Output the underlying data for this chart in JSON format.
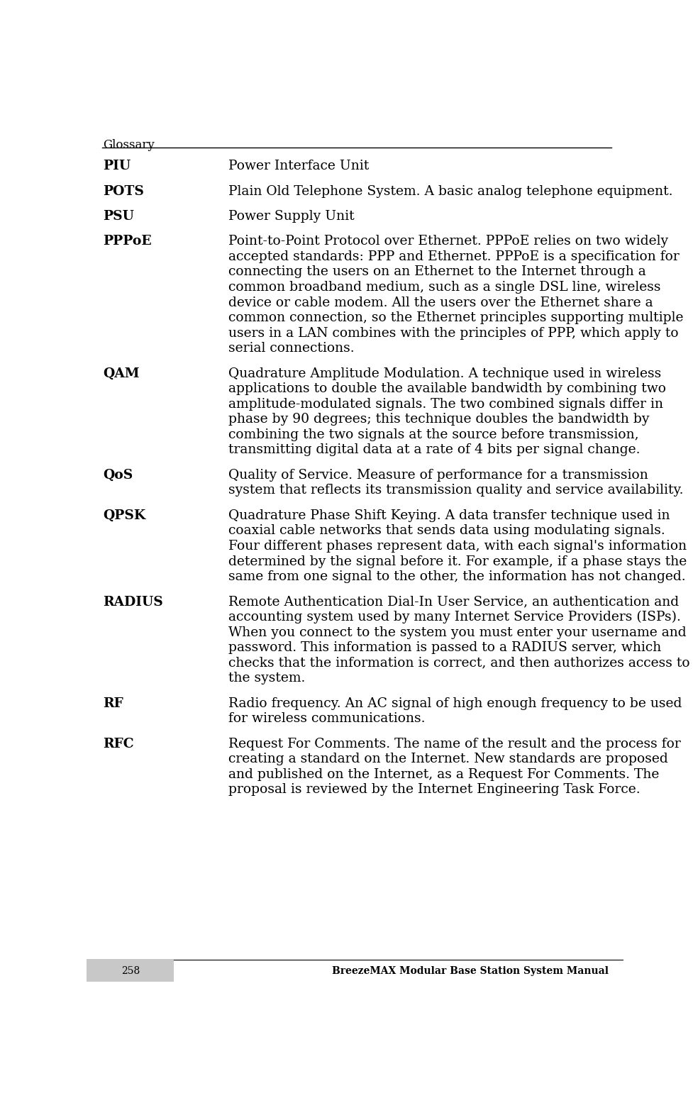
{
  "header_text": "Glossary",
  "footer_page": "258",
  "footer_right": "BreezeMAX Modular Base Station System Manual",
  "background_color": "#ffffff",
  "text_color": "#000000",
  "header_line_color": "#000000",
  "footer_line_color": "#000000",
  "footer_bg_color": "#c8c8c8",
  "entries": [
    {
      "term": "PIU",
      "definition": "Power Interface Unit"
    },
    {
      "term": "POTS",
      "definition": "Plain Old Telephone System. A basic analog telephone equipment."
    },
    {
      "term": "PSU",
      "definition": "Power Supply Unit"
    },
    {
      "term": "PPPoE",
      "definition": "Point-to-Point Protocol over Ethernet. PPPoE relies on two widely\naccepted standards: PPP and Ethernet. PPPoE is a specification for\nconnecting the users on an Ethernet to the Internet through a\ncommon broadband medium, such as a single DSL line, wireless\ndevice or cable modem. All the users over the Ethernet share a\ncommon connection, so the Ethernet principles supporting multiple\nusers in a LAN combines with the principles of PPP, which apply to\nserial connections."
    },
    {
      "term": "QAM",
      "definition": "Quadrature Amplitude Modulation. A technique used in wireless\napplications to double the available bandwidth by combining two\namplitude-modulated signals. The two combined signals differ in\nphase by 90 degrees; this technique doubles the bandwidth by\ncombining the two signals at the source before transmission,\ntransmitting digital data at a rate of 4 bits per signal change."
    },
    {
      "term": "QoS",
      "definition": "Quality of Service. Measure of performance for a transmission\nsystem that reflects its transmission quality and service availability."
    },
    {
      "term": "QPSK",
      "definition": "Quadrature Phase Shift Keying. A data transfer technique used in\ncoaxial cable networks that sends data using modulating signals.\nFour different phases represent data, with each signal's information\ndetermined by the signal before it. For example, if a phase stays the\nsame from one signal to the other, the information has not changed."
    },
    {
      "term": "RADIUS",
      "definition": "Remote Authentication Dial-In User Service, an authentication and\naccounting system used by many Internet Service Providers (ISPs).\nWhen you connect to the system you must enter your username and\npassword. This information is passed to a RADIUS server, which\nchecks that the information is correct, and then authorizes access to\nthe system."
    },
    {
      "term": "RF",
      "definition": "Radio frequency. An AC signal of high enough frequency to be used\nfor wireless communications."
    },
    {
      "term": "RFC",
      "definition": "Request For Comments. The name of the result and the process for\ncreating a standard on the Internet. New standards are proposed\nand published on the Internet, as a Request For Comments. The\nproposal is reviewed by the Internet Engineering Task Force."
    }
  ]
}
